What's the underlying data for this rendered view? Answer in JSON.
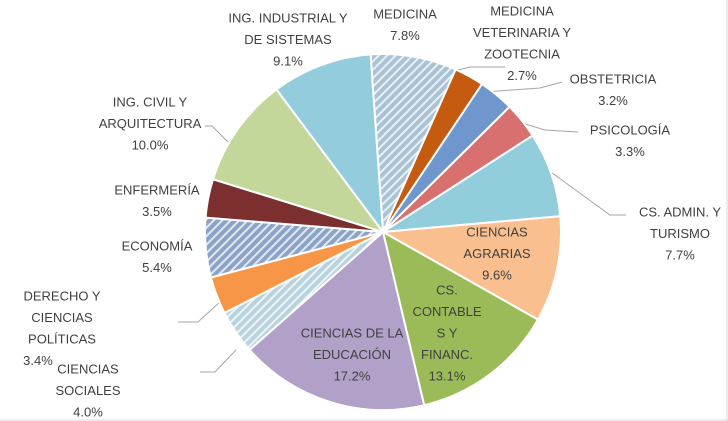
{
  "chart_data": {
    "type": "pie",
    "categories": [
      [
        "MEDICINA"
      ],
      [
        "MEDICINA",
        "VETERINARIA Y",
        "ZOOTECNIA"
      ],
      [
        "OBSTETRICIA"
      ],
      [
        "PSICOLOGÍA"
      ],
      [
        "CS. ADMIN. Y",
        "TURISMO"
      ],
      [
        "CIENCIAS",
        "AGRARIAS"
      ],
      [
        "CS.",
        "CONTABLE",
        "S Y",
        "FINANC."
      ],
      [
        "CIENCIAS DE LA",
        "EDUCACIÓN"
      ],
      [
        "CIENCIAS",
        "SOCIALES"
      ],
      [
        "DERECHO Y",
        "CIENCIAS",
        "POLÍTICAS"
      ],
      [
        "ECONOMÍA"
      ],
      [
        "ENFERMERÍA"
      ],
      [
        "ING. CIVIL Y",
        "ARQUITECTURA"
      ],
      [
        "ING. INDUSTRIAL Y",
        "DE SISTEMAS"
      ]
    ],
    "values": [
      7.8,
      2.7,
      3.2,
      3.3,
      7.7,
      9.6,
      13.1,
      17.2,
      4.0,
      3.4,
      5.4,
      3.5,
      10.0,
      9.1
    ],
    "value_labels": [
      "7.8%",
      "2.7%",
      "3.2%",
      "3.3%",
      "7.7%",
      "9.6%",
      "13.1%",
      "17.2%",
      "4.0%",
      "3.4%",
      "5.4%",
      "3.5%",
      "10.0%",
      "9.1%"
    ],
    "colors": [
      "#a9c2d4",
      "#c55a11",
      "#6f97cd",
      "#d7706f",
      "#92cddc",
      "#f9bf8f",
      "#9bbb59",
      "#b1a0c7",
      "#b8d3de",
      "#f79646",
      "#8aa3c6",
      "#7b2f2f",
      "#c4d79b",
      "#93cddd"
    ],
    "hatch": [
      true,
      false,
      false,
      false,
      false,
      false,
      false,
      false,
      true,
      false,
      true,
      false,
      false,
      false
    ]
  }
}
